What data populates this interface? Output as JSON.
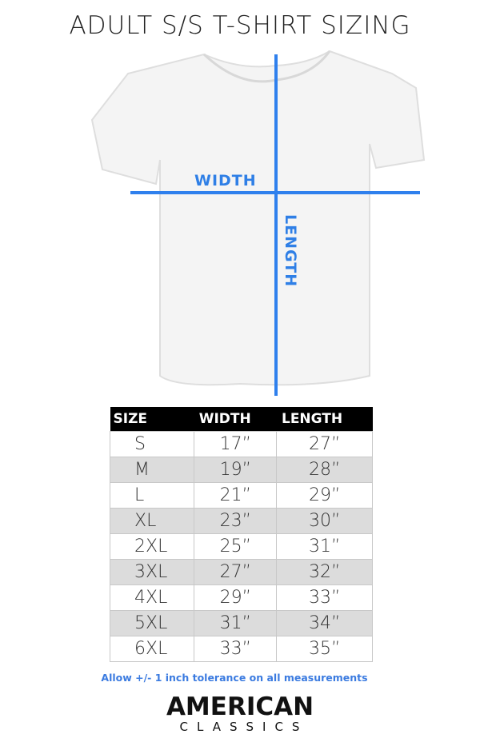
{
  "title": "ADULT S/S T-SHIRT SIZING",
  "diagram": {
    "width_label": "WIDTH",
    "length_label": "LENGTH",
    "line_color": "#2f80ed"
  },
  "table": {
    "headers": [
      "SIZE",
      "WIDTH",
      "LENGTH"
    ],
    "rows": [
      [
        "S",
        "17”",
        "27”"
      ],
      [
        "M",
        "19”",
        "28”"
      ],
      [
        "L",
        "21”",
        "29”"
      ],
      [
        "XL",
        "23”",
        "30”"
      ],
      [
        "2XL",
        "25”",
        "31”"
      ],
      [
        "3XL",
        "27”",
        "32”"
      ],
      [
        "4XL",
        "29”",
        "33”"
      ],
      [
        "5XL",
        "31”",
        "34”"
      ],
      [
        "6XL",
        "33”",
        "35”"
      ]
    ]
  },
  "note": "Allow +/- 1 inch tolerance on all measurements",
  "logo": {
    "line1": "AMERICAN",
    "line2": "CLASSICS"
  }
}
